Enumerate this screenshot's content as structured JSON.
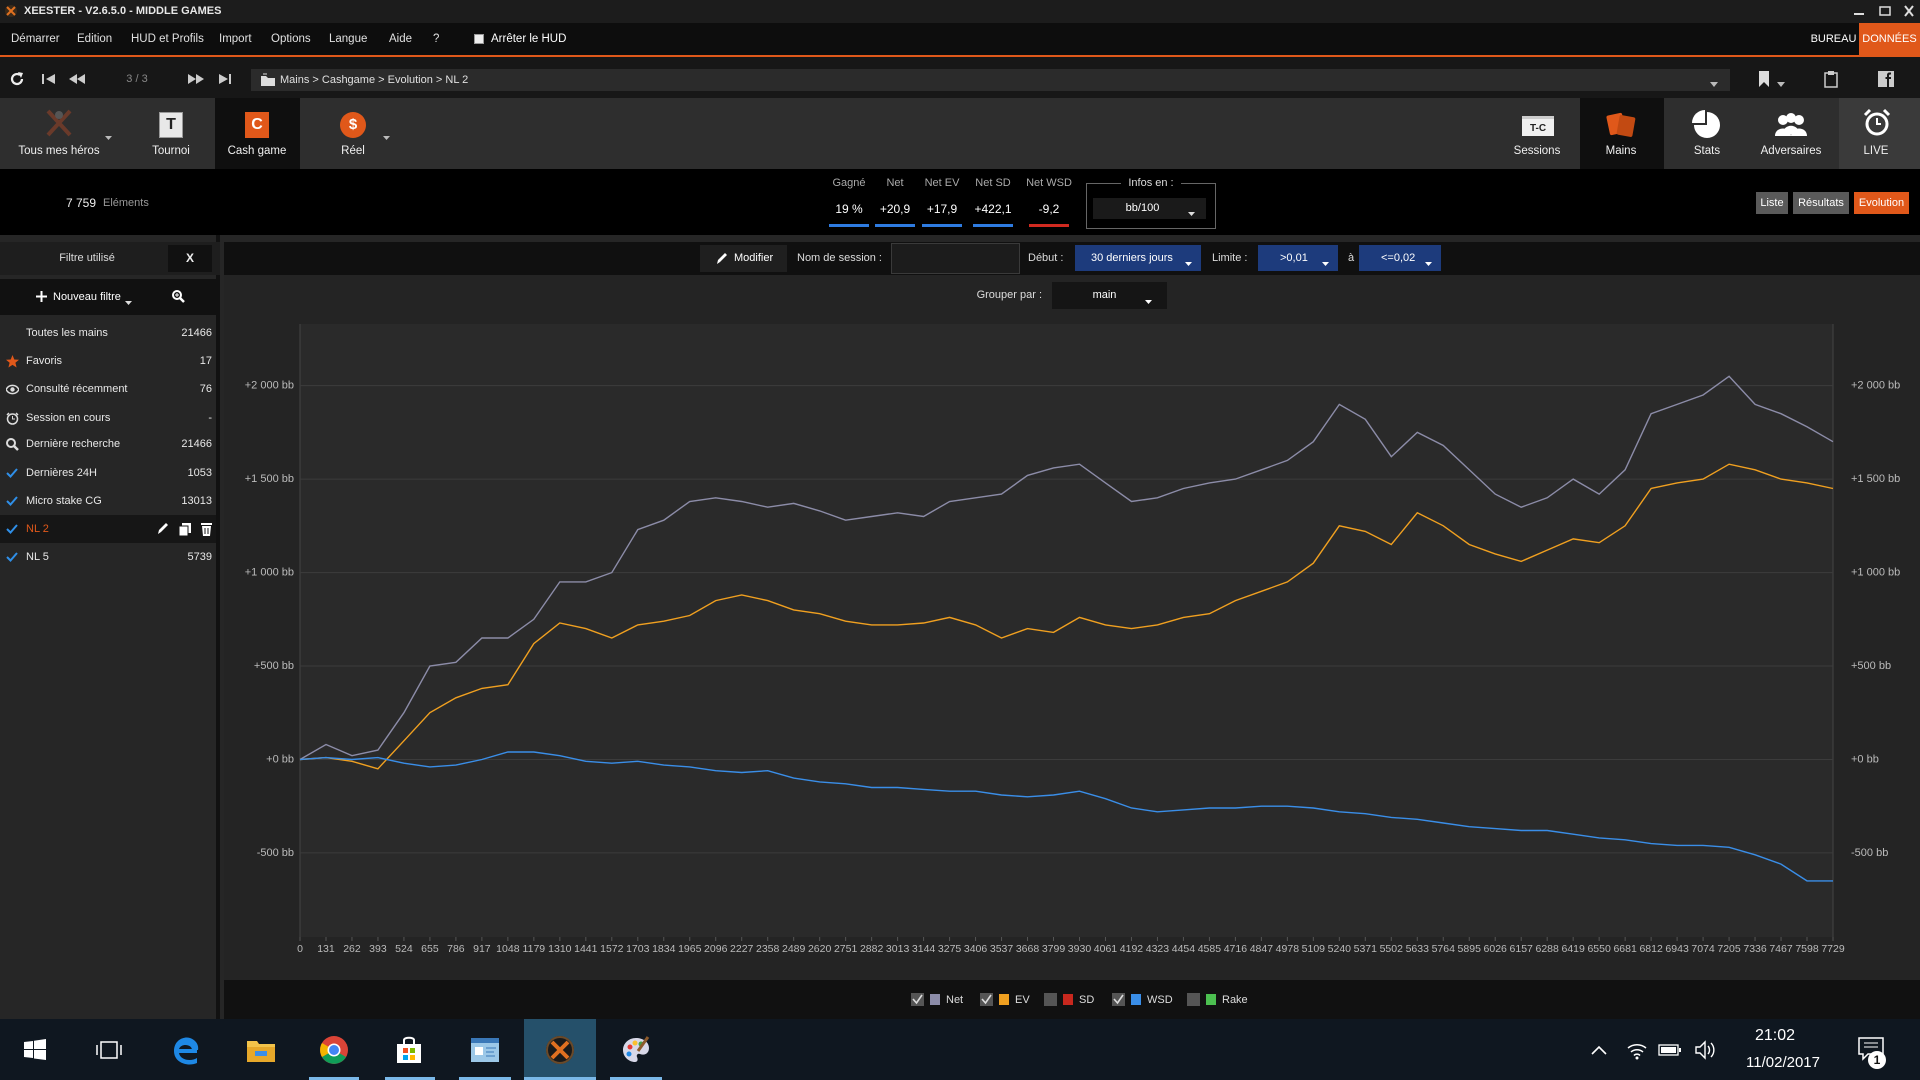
{
  "window": {
    "title": "XEESTER - V2.6.5.0 - MIDDLE GAMES"
  },
  "menu": {
    "items": [
      "Démarrer",
      "Edition",
      "HUD et Profils",
      "Import",
      "Options",
      "Langue",
      "Aide",
      "?"
    ],
    "hud_toggle": "Arrêter le HUD",
    "right": [
      "BUREAU",
      "DONNÉES"
    ]
  },
  "nav": {
    "page": "3 / 3",
    "breadcrumb": "Mains > Cashgame > Evolution > NL 2"
  },
  "toolbar": {
    "left": [
      "Tous mes héros",
      "Tournoi",
      "Cash game",
      "Réel"
    ],
    "right": [
      "Sessions",
      "Mains",
      "Stats",
      "Adversaires",
      "LIVE"
    ],
    "icons": {
      "tournoi": "T",
      "cash": "C",
      "reel": "$",
      "sessions": "T-C"
    }
  },
  "summary": {
    "count": "7 759",
    "count_label": "Eléments",
    "stats": [
      {
        "label": "Gagné",
        "value": "19 %",
        "color": "#2e7be0"
      },
      {
        "label": "Net",
        "value": "+20,9",
        "color": "#2e7be0"
      },
      {
        "label": "Net EV",
        "value": "+17,9",
        "color": "#2e7be0"
      },
      {
        "label": "Net SD",
        "value": "+422,1",
        "color": "#2e7be0"
      },
      {
        "label": "Net WSD",
        "value": "-9,2",
        "color": "#d02a20"
      }
    ],
    "infos_label": "Infos en :",
    "infos_value": "bb/100",
    "views": [
      "Liste",
      "Résultats",
      "Evolution"
    ]
  },
  "sidebar": {
    "filter_label": "Filtre utilisé",
    "filter_clear": "X",
    "new_filter": "Nouveau filtre",
    "items": [
      {
        "name": "Toutes les mains",
        "count": 21466
      },
      {
        "name": "Favoris",
        "count": 17
      },
      {
        "name": "Consulté récemment",
        "count": 76
      },
      {
        "name": "Session en cours",
        "count": "-"
      },
      {
        "name": "Dernière recherche",
        "count": 21466
      },
      {
        "name": "Dernières 24H",
        "count": 1053
      },
      {
        "name": "Micro stake CG",
        "count": 13013
      },
      {
        "name": "NL 2"
      },
      {
        "name": "NL 5",
        "count": 5739
      }
    ]
  },
  "filters": {
    "modify": "Modifier",
    "session_label": "Nom de session :",
    "start_label": "Début :",
    "start_value": "30 derniers jours",
    "limit_label": "Limite :",
    "limit_min": ">0,01",
    "limit_sep": "à",
    "limit_max": "<=0,02",
    "group_label": "Grouper par :",
    "group_value": "main"
  },
  "chart_data": {
    "type": "line",
    "grid": true,
    "x": [
      0,
      131,
      262,
      393,
      524,
      655,
      786,
      917,
      1048,
      1179,
      1310,
      1441,
      1572,
      1703,
      1834,
      1965,
      2096,
      2227,
      2358,
      2489,
      2620,
      2751,
      2882,
      3013,
      3144,
      3275,
      3406,
      3537,
      3668,
      3799,
      3930,
      4061,
      4192,
      4323,
      4454,
      4585,
      4716,
      4847,
      4978,
      5109,
      5240,
      5371,
      5502,
      5633,
      5764,
      5895,
      6026,
      6157,
      6288,
      6419,
      6550,
      6681,
      6812,
      6943,
      7074,
      7205,
      7336,
      7467,
      7598,
      7729
    ],
    "xlim": [
      0,
      7729
    ],
    "xticks": [
      0,
      131,
      262,
      393,
      524,
      655,
      786,
      917,
      1048,
      1179,
      1310,
      1441,
      1572,
      1703,
      1834,
      1965,
      2096,
      2227,
      2358,
      2489,
      2620,
      2751,
      2882,
      3013,
      3144,
      3275,
      3406,
      3537,
      3668,
      3799,
      3930,
      4061,
      4192,
      4323,
      4454,
      4585,
      4716,
      4847,
      4978,
      5109,
      5240,
      5371,
      5502,
      5633,
      5764,
      5895,
      6026,
      6157,
      6288,
      6419,
      6550,
      6681,
      6812,
      6943,
      7074,
      7205,
      7336,
      7467,
      7598,
      7729
    ],
    "ylim": [
      -950,
      2330
    ],
    "yticks": [
      {
        "value": -500,
        "label": "-500 bb"
      },
      {
        "value": 0,
        "label": "+0 bb"
      },
      {
        "value": 500,
        "label": "+500 bb"
      },
      {
        "value": 1000,
        "label": "+1 000 bb"
      },
      {
        "value": 1500,
        "label": "+1 500 bb"
      },
      {
        "value": 2000,
        "label": "+2 000 bb"
      }
    ],
    "series": [
      {
        "name": "Net",
        "color": "#8c8ca8",
        "visible": true,
        "values": [
          0,
          80,
          20,
          50,
          250,
          500,
          520,
          650,
          650,
          750,
          950,
          950,
          1000,
          1230,
          1280,
          1380,
          1400,
          1380,
          1350,
          1370,
          1330,
          1280,
          1300,
          1320,
          1300,
          1380,
          1400,
          1420,
          1520,
          1560,
          1580,
          1480,
          1380,
          1400,
          1450,
          1480,
          1500,
          1550,
          1600,
          1700,
          1900,
          1820,
          1620,
          1750,
          1680,
          1550,
          1420,
          1350,
          1400,
          1500,
          1420,
          1550,
          1850,
          1900,
          1950,
          2050,
          1900,
          1850,
          1780,
          1700
        ]
      },
      {
        "name": "EV",
        "color": "#f0a020",
        "visible": true,
        "values": [
          0,
          10,
          -10,
          -50,
          100,
          250,
          330,
          380,
          400,
          620,
          730,
          700,
          650,
          720,
          740,
          770,
          850,
          880,
          850,
          800,
          780,
          740,
          720,
          720,
          730,
          760,
          720,
          650,
          700,
          680,
          760,
          720,
          700,
          720,
          760,
          780,
          850,
          900,
          950,
          1050,
          1250,
          1220,
          1150,
          1320,
          1250,
          1150,
          1100,
          1060,
          1120,
          1180,
          1160,
          1250,
          1450,
          1480,
          1500,
          1580,
          1550,
          1500,
          1480,
          1450
        ]
      },
      {
        "name": "SD",
        "color": "#c8281e",
        "visible": false
      },
      {
        "name": "WSD",
        "color": "#3a8ee8",
        "visible": true,
        "values": [
          0,
          10,
          0,
          10,
          -20,
          -40,
          -30,
          0,
          40,
          40,
          20,
          -10,
          -20,
          -10,
          -30,
          -40,
          -60,
          -70,
          -60,
          -100,
          -120,
          -130,
          -150,
          -150,
          -160,
          -170,
          -170,
          -190,
          -200,
          -190,
          -170,
          -210,
          -260,
          -280,
          -270,
          -260,
          -260,
          -250,
          -250,
          -260,
          -280,
          -290,
          -310,
          -320,
          -340,
          -360,
          -370,
          -380,
          -380,
          -400,
          -420,
          -430,
          -450,
          -460,
          -460,
          -470,
          -510,
          -560,
          -650,
          -650
        ]
      },
      {
        "name": "Rake",
        "color": "#4cc050",
        "visible": false
      }
    ]
  },
  "taskbar": {
    "time": "21:02",
    "date": "11/02/2017",
    "notifications": 1
  }
}
